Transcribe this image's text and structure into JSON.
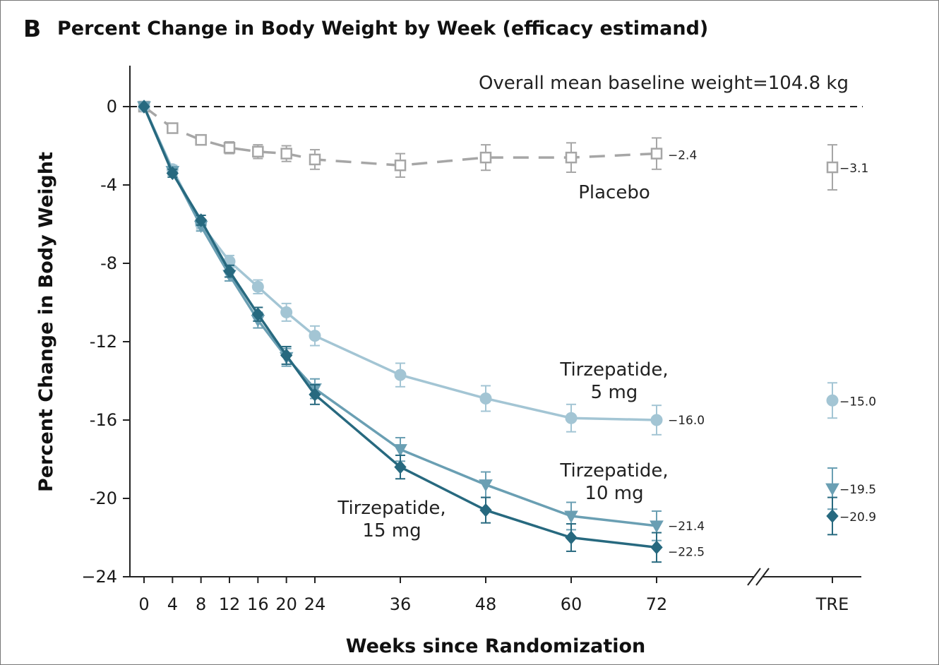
{
  "panel_letter": "B",
  "chart_data": {
    "type": "line",
    "title": "Percent Change in Body Weight by Week (efficacy estimand)",
    "xlabel": "Weeks since Randomization",
    "ylabel": "Percent Change in Body Weight",
    "ylim": [
      -24,
      2
    ],
    "yticks": [
      0,
      -4,
      -8,
      -12,
      -16,
      -20,
      -24
    ],
    "ytick_labels": [
      "0",
      "-4",
      "-8",
      "-12",
      "-16",
      "-20",
      "−24"
    ],
    "xticks": [
      0,
      4,
      8,
      12,
      16,
      20,
      24,
      36,
      48,
      60,
      72
    ],
    "extra_xtick_label": "TRE",
    "annotation_baseline": "Overall mean baseline weight=104.8 kg",
    "grid": false,
    "legend": "none",
    "series": [
      {
        "name": "Placebo",
        "label_lines": [
          "Placebo"
        ],
        "color": "#a6a6a6",
        "marker": "square-open",
        "dashed": true,
        "x": [
          0,
          4,
          8,
          12,
          16,
          20,
          24,
          36,
          48,
          60,
          72
        ],
        "y": [
          0,
          -1.1,
          -1.7,
          -2.1,
          -2.3,
          -2.4,
          -2.7,
          -3.0,
          -2.6,
          -2.6,
          -2.4
        ],
        "err": [
          0,
          0.2,
          0.25,
          0.3,
          0.35,
          0.4,
          0.5,
          0.6,
          0.65,
          0.75,
          0.8
        ],
        "end_label": "−2.4",
        "tre": {
          "y": -3.1,
          "err": 1.15,
          "label": "−3.1"
        }
      },
      {
        "name": "Tirzepatide, 5 mg",
        "label_lines": [
          "Tirzepatide,",
          "5 mg"
        ],
        "color": "#a3c5d4",
        "marker": "circle",
        "dashed": false,
        "x": [
          0,
          4,
          8,
          12,
          16,
          20,
          24,
          36,
          48,
          60,
          72
        ],
        "y": [
          0,
          -3.2,
          -6.0,
          -7.9,
          -9.2,
          -10.5,
          -11.7,
          -13.7,
          -14.9,
          -15.9,
          -16.0
        ],
        "err": [
          0,
          0.2,
          0.25,
          0.3,
          0.35,
          0.45,
          0.5,
          0.6,
          0.65,
          0.7,
          0.75
        ],
        "end_label": "−16.0",
        "tre": {
          "y": -15.0,
          "err": 0.9,
          "label": "−15.0"
        }
      },
      {
        "name": "Tirzepatide, 10 mg",
        "label_lines": [
          "Tirzepatide,",
          "10 mg"
        ],
        "color": "#6a9fb3",
        "marker": "triangle-down",
        "dashed": false,
        "x": [
          0,
          4,
          8,
          12,
          16,
          20,
          24,
          36,
          48,
          60,
          72
        ],
        "y": [
          0,
          -3.3,
          -6.1,
          -8.6,
          -10.9,
          -12.8,
          -14.4,
          -17.5,
          -19.3,
          -20.9,
          -21.4
        ],
        "err": [
          0,
          0.2,
          0.25,
          0.3,
          0.4,
          0.45,
          0.5,
          0.6,
          0.65,
          0.7,
          0.75
        ],
        "end_label": "−21.4",
        "tre": {
          "y": -19.5,
          "err": 1.05,
          "label": "−19.5"
        }
      },
      {
        "name": "Tirzepatide, 15 mg",
        "label_lines": [
          "Tirzepatide,",
          "15 mg"
        ],
        "color": "#27697f",
        "marker": "diamond",
        "dashed": false,
        "x": [
          0,
          4,
          8,
          12,
          16,
          20,
          24,
          36,
          48,
          60,
          72
        ],
        "y": [
          0,
          -3.4,
          -5.8,
          -8.4,
          -10.6,
          -12.7,
          -14.7,
          -18.4,
          -20.6,
          -22.0,
          -22.5
        ],
        "err": [
          0,
          0.2,
          0.25,
          0.3,
          0.35,
          0.45,
          0.5,
          0.6,
          0.65,
          0.7,
          0.75
        ],
        "end_label": "−22.5",
        "tre": {
          "y": -20.9,
          "err": 0.95,
          "label": "−20.9"
        }
      }
    ]
  }
}
